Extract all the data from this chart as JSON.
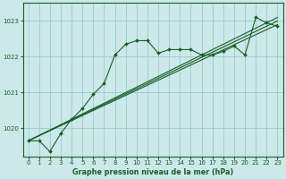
{
  "background_color": "#cce8e8",
  "grid_color": "#99cccc",
  "line_color": "#1a5c2a",
  "title": "Graphe pression niveau de la mer (hPa)",
  "xlim": [
    -0.5,
    23.5
  ],
  "ylim": [
    1019.2,
    1023.5
  ],
  "yticks": [
    1020,
    1021,
    1022,
    1023
  ],
  "xticks": [
    0,
    1,
    2,
    3,
    4,
    5,
    6,
    7,
    8,
    9,
    10,
    11,
    12,
    13,
    14,
    15,
    16,
    17,
    18,
    19,
    20,
    21,
    22,
    23
  ],
  "jagged_x": [
    0,
    1,
    2,
    3,
    4,
    5,
    6,
    7,
    8,
    9,
    10,
    11,
    12,
    13,
    14,
    15,
    16,
    17,
    18,
    19,
    20,
    21,
    22,
    23
  ],
  "jagged_y": [
    1019.65,
    1019.65,
    1019.35,
    1019.85,
    1020.25,
    1020.55,
    1020.95,
    1021.25,
    1022.05,
    1022.35,
    1022.45,
    1022.45,
    1022.1,
    1022.2,
    1022.2,
    1022.2,
    1022.05,
    1022.05,
    1022.15,
    1022.3,
    1022.05,
    1023.1,
    1022.95,
    1022.85
  ],
  "line1_x": [
    0,
    23
  ],
  "line1_y": [
    1019.65,
    1023.1
  ],
  "line2_x": [
    0,
    23
  ],
  "line2_y": [
    1019.65,
    1023.0
  ],
  "line3_x": [
    0,
    23
  ],
  "line3_y": [
    1019.65,
    1022.9
  ]
}
